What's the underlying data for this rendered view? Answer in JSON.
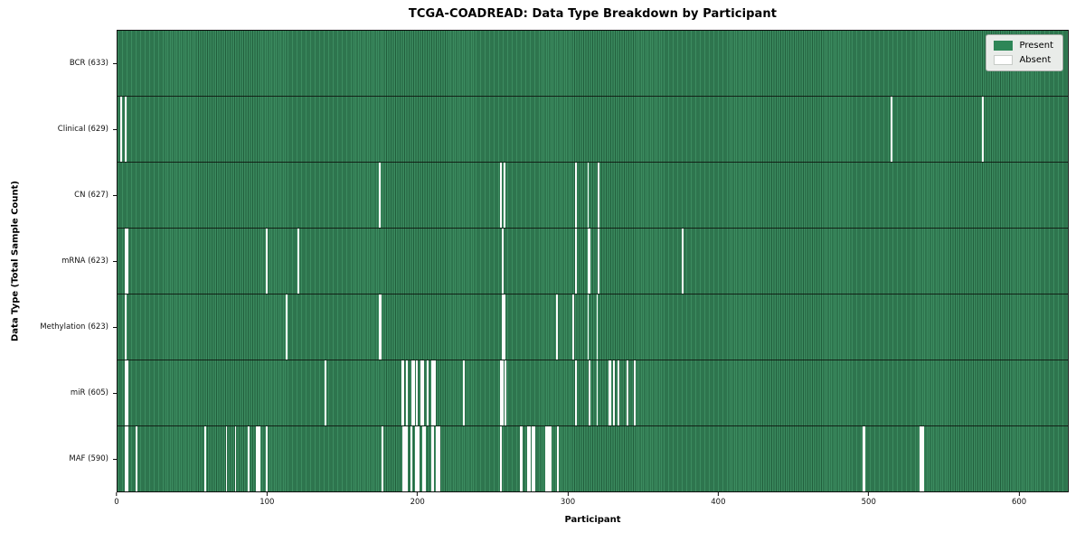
{
  "figure": {
    "title": "TCGA-COADREAD: Data Type Breakdown by Participant",
    "xlabel": "Participant",
    "ylabel": "Data Type (Total Sample Count)"
  },
  "legend": {
    "items": [
      {
        "label": "Present",
        "color": "#2e8657"
      },
      {
        "label": "Absent",
        "color": "#ffffff"
      }
    ]
  },
  "colors": {
    "present": "#2e8657",
    "present_light": "#3c8c60",
    "present_dark": "#215e3c",
    "absent": "#fdfdfd",
    "legend_bg": "#e9ece9"
  },
  "chart_data": {
    "type": "heatmap",
    "title": "TCGA-COADREAD: Data Type Breakdown by Participant",
    "xlabel": "Participant",
    "ylabel": "Data Type (Total Sample Count)",
    "legend_position": "upper right",
    "n_participants": 633,
    "x_ticks": [
      0,
      100,
      200,
      300,
      400,
      500,
      600
    ],
    "xlim": [
      0,
      633
    ],
    "cell_values": {
      "present": 1,
      "absent": 0
    },
    "rows": [
      {
        "label": "BCR (633)",
        "data_type": "BCR",
        "total": 633,
        "absent_participants": []
      },
      {
        "label": "Clinical (629)",
        "data_type": "Clinical",
        "total": 629,
        "absent_participants": [
          2,
          5,
          515,
          576
        ]
      },
      {
        "label": "CN (627)",
        "data_type": "CN",
        "total": 627,
        "absent_participants": [
          174,
          255,
          257,
          305,
          313,
          320
        ]
      },
      {
        "label": "mRNA (623)",
        "data_type": "mRNA",
        "total": 623,
        "absent_participants": [
          5,
          6,
          99,
          120,
          256,
          305,
          313,
          314,
          320,
          376
        ]
      },
      {
        "label": "Methylation (623)",
        "data_type": "Methylation",
        "total": 623,
        "absent_participants": [
          5,
          112,
          174,
          175,
          256,
          257,
          292,
          303,
          313,
          319
        ]
      },
      {
        "label": "miR (605)",
        "data_type": "miR",
        "total": 605,
        "absent_participants": [
          5,
          6,
          138,
          189,
          190,
          192,
          196,
          197,
          199,
          202,
          203,
          206,
          209,
          210,
          211,
          230,
          255,
          256,
          258,
          305,
          314,
          319,
          327,
          328,
          330,
          333,
          339,
          344
        ]
      },
      {
        "label": "MAF (590)",
        "data_type": "MAF",
        "total": 590,
        "absent_participants": [
          5,
          6,
          12,
          58,
          72,
          78,
          87,
          92,
          93,
          94,
          99,
          176,
          190,
          191,
          192,
          195,
          198,
          199,
          200,
          203,
          204,
          209,
          210,
          212,
          213,
          214,
          255,
          268,
          269,
          273,
          274,
          276,
          277,
          285,
          286,
          287,
          288,
          293,
          496,
          497,
          534,
          535,
          536
        ]
      }
    ]
  }
}
